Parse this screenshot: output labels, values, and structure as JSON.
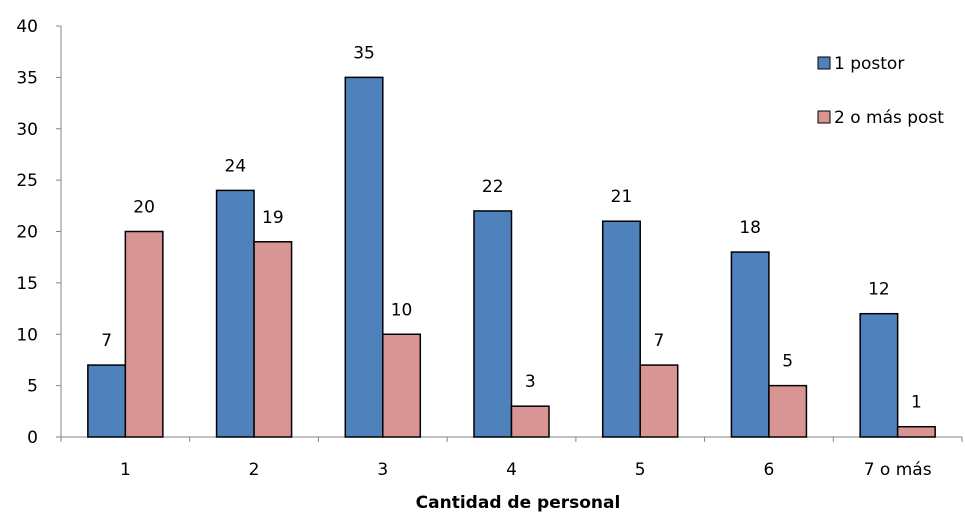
{
  "chart_data": {
    "type": "bar",
    "categories": [
      "1",
      "2",
      "3",
      "4",
      "5",
      "6",
      "7 o más"
    ],
    "series": [
      {
        "name": "1 postor",
        "values": [
          7,
          24,
          35,
          22,
          21,
          18,
          12
        ],
        "color": "#4F81BD"
      },
      {
        "name": "2 o más post",
        "values": [
          20,
          19,
          10,
          3,
          7,
          5,
          1
        ],
        "color": "#D99594"
      }
    ],
    "title": "",
    "xlabel": "Cantidad de personal",
    "ylabel": "",
    "ylim": [
      0,
      40
    ],
    "yticks": [
      0,
      5,
      10,
      15,
      20,
      25,
      30,
      35,
      40
    ],
    "grid": false,
    "legend_position": "top-right",
    "data_labels": true
  }
}
